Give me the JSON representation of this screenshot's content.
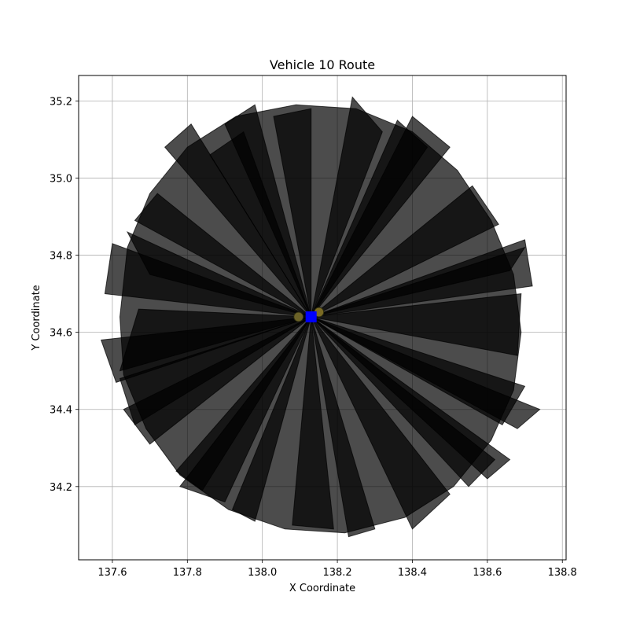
{
  "chart_data": {
    "type": "scatter",
    "title": "Vehicle 10 Route",
    "xlabel": "X Coordinate",
    "ylabel": "Y Coordinate",
    "xlim": [
      137.51,
      138.81
    ],
    "ylim": [
      34.01,
      35.266
    ],
    "xticks": [
      137.6,
      137.8,
      138.0,
      138.2,
      138.4,
      138.6,
      138.8
    ],
    "yticks": [
      34.2,
      34.4,
      34.6,
      34.8,
      35.0,
      35.2
    ],
    "xtick_labels": [
      "137.6",
      "137.8",
      "138.0",
      "138.2",
      "138.4",
      "138.6",
      "138.8"
    ],
    "ytick_labels": [
      "34.2",
      "34.4",
      "34.6",
      "34.8",
      "35.0",
      "35.2"
    ],
    "grid": true,
    "depot": {
      "x": 138.13,
      "y": 34.64,
      "marker": "square",
      "color": "#0000ff"
    },
    "route_triangles": [
      [
        [
          138.13,
          34.64
        ],
        [
          137.98,
          35.19
        ],
        [
          137.9,
          35.14
        ]
      ],
      [
        [
          138.13,
          34.64
        ],
        [
          138.24,
          35.21
        ],
        [
          138.32,
          35.12
        ]
      ],
      [
        [
          138.13,
          34.64
        ],
        [
          137.81,
          35.14
        ],
        [
          137.74,
          35.08
        ]
      ],
      [
        [
          138.13,
          34.64
        ],
        [
          138.4,
          35.16
        ],
        [
          138.5,
          35.08
        ]
      ],
      [
        [
          138.13,
          34.64
        ],
        [
          137.72,
          34.96
        ],
        [
          137.66,
          34.89
        ]
      ],
      [
        [
          138.13,
          34.64
        ],
        [
          138.56,
          34.98
        ],
        [
          138.63,
          34.88
        ]
      ],
      [
        [
          138.13,
          34.64
        ],
        [
          137.6,
          34.83
        ],
        [
          137.58,
          34.7
        ]
      ],
      [
        [
          138.13,
          34.64
        ],
        [
          138.7,
          34.84
        ],
        [
          138.72,
          34.72
        ]
      ],
      [
        [
          138.13,
          34.64
        ],
        [
          137.57,
          34.58
        ],
        [
          137.61,
          34.47
        ]
      ],
      [
        [
          138.13,
          34.64
        ],
        [
          138.74,
          34.4
        ],
        [
          138.68,
          34.35
        ]
      ],
      [
        [
          138.13,
          34.64
        ],
        [
          137.63,
          34.4
        ],
        [
          137.7,
          34.31
        ]
      ],
      [
        [
          138.13,
          34.64
        ],
        [
          138.66,
          34.27
        ],
        [
          138.6,
          34.22
        ]
      ],
      [
        [
          138.13,
          34.64
        ],
        [
          137.77,
          34.24
        ],
        [
          137.84,
          34.19
        ]
      ],
      [
        [
          138.13,
          34.64
        ],
        [
          138.5,
          34.18
        ],
        [
          138.4,
          34.09
        ]
      ],
      [
        [
          138.13,
          34.64
        ],
        [
          137.92,
          34.14
        ],
        [
          137.98,
          34.11
        ]
      ],
      [
        [
          138.13,
          34.64
        ],
        [
          138.3,
          34.09
        ],
        [
          138.23,
          34.07
        ]
      ],
      [
        [
          138.13,
          34.64
        ],
        [
          138.08,
          34.1
        ],
        [
          138.19,
          34.09
        ]
      ],
      [
        [
          138.13,
          34.64
        ],
        [
          137.67,
          34.66
        ],
        [
          137.62,
          34.5
        ]
      ],
      [
        [
          138.13,
          34.64
        ],
        [
          138.69,
          34.7
        ],
        [
          138.68,
          34.54
        ]
      ],
      [
        [
          138.13,
          34.64
        ],
        [
          137.7,
          34.75
        ],
        [
          137.64,
          34.86
        ]
      ],
      [
        [
          138.13,
          34.64
        ],
        [
          138.66,
          34.76
        ],
        [
          138.7,
          34.82
        ]
      ],
      [
        [
          138.13,
          34.64
        ],
        [
          137.86,
          35.06
        ],
        [
          137.95,
          35.12
        ]
      ],
      [
        [
          138.13,
          34.64
        ],
        [
          138.44,
          35.08
        ],
        [
          138.36,
          35.15
        ]
      ],
      [
        [
          138.13,
          34.64
        ],
        [
          138.13,
          35.18
        ],
        [
          138.03,
          35.16
        ]
      ],
      [
        [
          138.13,
          34.64
        ],
        [
          137.9,
          34.16
        ],
        [
          137.78,
          34.2
        ]
      ],
      [
        [
          138.13,
          34.64
        ],
        [
          138.55,
          34.2
        ],
        [
          138.62,
          34.27
        ]
      ],
      [
        [
          138.13,
          34.64
        ],
        [
          137.66,
          34.36
        ],
        [
          137.62,
          34.48
        ]
      ],
      [
        [
          138.13,
          34.64
        ],
        [
          138.64,
          34.36
        ],
        [
          138.7,
          34.46
        ]
      ]
    ],
    "route_polygon": [
      [
        137.62,
        34.64
      ],
      [
        137.64,
        34.82
      ],
      [
        137.7,
        34.96
      ],
      [
        137.8,
        35.08
      ],
      [
        137.93,
        35.16
      ],
      [
        138.09,
        35.19
      ],
      [
        138.25,
        35.18
      ],
      [
        138.4,
        35.12
      ],
      [
        138.52,
        35.02
      ],
      [
        138.61,
        34.89
      ],
      [
        138.67,
        34.75
      ],
      [
        138.69,
        34.6
      ],
      [
        138.67,
        34.45
      ],
      [
        138.61,
        34.32
      ],
      [
        138.51,
        34.2
      ],
      [
        138.38,
        34.12
      ],
      [
        138.22,
        34.08
      ],
      [
        138.06,
        34.09
      ],
      [
        137.91,
        34.14
      ],
      [
        137.78,
        34.23
      ],
      [
        137.69,
        34.35
      ],
      [
        137.63,
        34.49
      ]
    ],
    "fill_color": "#000000",
    "fill_alpha": 0.7
  }
}
